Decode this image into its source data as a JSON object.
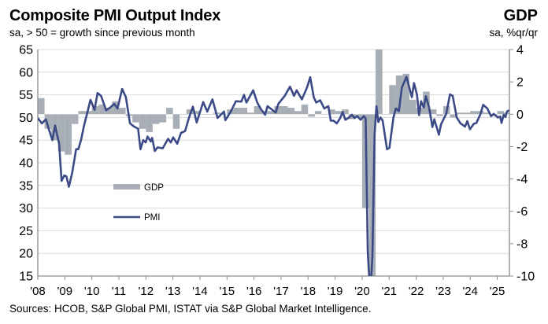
{
  "header": {
    "title": "Composite PMI Output Index",
    "subtitle": "sa, > 50 = growth since previous month",
    "right_title": "GDP",
    "right_subtitle": "sa, %qr/qr"
  },
  "footer": {
    "source": "Sources: HCOB, S&P Global PMI, ISTAT via S&P Global Market Intelligence."
  },
  "chart_data": {
    "type": "bar+line",
    "title": "Composite PMI Output Index",
    "xlim": [
      2008.0,
      2025.45
    ],
    "x_ticks": [
      "'08",
      "'09",
      "'10",
      "'11",
      "'12",
      "'13",
      "'14",
      "'15",
      "'16",
      "'17",
      "'18",
      "'19",
      "'20",
      "'21",
      "'22",
      "'23",
      "'24",
      "'25"
    ],
    "left_axis": {
      "label": "sa, > 50 = growth since previous month",
      "ylim": [
        15,
        65
      ],
      "ticks": [
        "65",
        "60",
        "55",
        "50",
        "45",
        "40",
        "35",
        "30",
        "25",
        "20",
        "15"
      ]
    },
    "right_axis": {
      "label": "sa, %qr/qr",
      "ylim": [
        -10,
        4
      ],
      "ticks": [
        "4",
        "2",
        "0",
        "-2",
        "-4",
        "-6",
        "-8",
        "-10"
      ]
    },
    "grid": true,
    "legend": {
      "placement": "center-left",
      "entries": [
        "GDP",
        "PMI"
      ]
    },
    "colors": {
      "gdp": "#a7aeb5",
      "pmi": "#3b4a86",
      "grid": "#d9d9d9",
      "axis": "#8c8c8c"
    },
    "gdp": {
      "name": "GDP",
      "axis": "right",
      "start_quarter": "2008 Q1",
      "values": [
        1.0,
        -0.9,
        -1.6,
        -2.3,
        -2.5,
        -0.6,
        0.2,
        0.2,
        0.5,
        0.6,
        0.4,
        0.8,
        0.4,
        -0.1,
        -0.5,
        -0.9,
        -1.1,
        -0.6,
        -0.5,
        0.4,
        -0.9,
        0.0,
        0.3,
        0.2,
        0.0,
        0.0,
        0.1,
        0.0,
        0.3,
        0.4,
        0.4,
        0.1,
        0.5,
        0.2,
        0.2,
        0.5,
        0.5,
        0.4,
        0.2,
        0.6,
        -0.15,
        0.2,
        0.0,
        0.3,
        0.2,
        0.3,
        -0.3,
        -0.2,
        -5.8,
        -13.0,
        16.0,
        0.0,
        1.8,
        2.4,
        2.5,
        0.9,
        0.4,
        1.4,
        0.3,
        -0.1,
        0.5,
        -0.2,
        0.1,
        0.1,
        0.2,
        0.2,
        0.1,
        -0.1,
        0.2,
        0.1
      ]
    },
    "pmi": {
      "name": "PMI",
      "axis": "left",
      "points": [
        [
          2008.0,
          49.9
        ],
        [
          2008.15,
          48.7
        ],
        [
          2008.3,
          49.6
        ],
        [
          2008.4,
          47.6
        ],
        [
          2008.54,
          45
        ],
        [
          2008.64,
          48.2
        ],
        [
          2008.79,
          44.2
        ],
        [
          2008.88,
          36
        ],
        [
          2008.98,
          37.2
        ],
        [
          2009.06,
          37
        ],
        [
          2009.15,
          34.7
        ],
        [
          2009.27,
          37.7
        ],
        [
          2009.42,
          43
        ],
        [
          2009.5,
          43
        ],
        [
          2009.61,
          45.3
        ],
        [
          2009.71,
          48.2
        ],
        [
          2009.81,
          50.5
        ],
        [
          2009.95,
          53.9
        ],
        [
          2010.1,
          51.7
        ],
        [
          2010.21,
          55.4
        ],
        [
          2010.34,
          54.8
        ],
        [
          2010.53,
          51.6
        ],
        [
          2010.68,
          52.2
        ],
        [
          2010.83,
          53
        ],
        [
          2010.95,
          52
        ],
        [
          2011.12,
          56.3
        ],
        [
          2011.26,
          54.5
        ],
        [
          2011.41,
          48.7
        ],
        [
          2011.56,
          48
        ],
        [
          2011.71,
          47.5
        ],
        [
          2011.8,
          43
        ],
        [
          2011.9,
          45
        ],
        [
          2011.99,
          44.5
        ],
        [
          2012.06,
          45.8
        ],
        [
          2012.18,
          44.7
        ],
        [
          2012.23,
          45.5
        ],
        [
          2012.33,
          42.6
        ],
        [
          2012.43,
          43.4
        ],
        [
          2012.62,
          43.2
        ],
        [
          2012.82,
          45.3
        ],
        [
          2012.92,
          44.5
        ],
        [
          2013.01,
          45.6
        ],
        [
          2013.16,
          44.2
        ],
        [
          2013.3,
          46.6
        ],
        [
          2013.45,
          47
        ],
        [
          2013.59,
          49.9
        ],
        [
          2013.74,
          52.4
        ],
        [
          2013.88,
          48.9
        ],
        [
          2014.12,
          53.4
        ],
        [
          2014.27,
          51.3
        ],
        [
          2014.46,
          54
        ],
        [
          2014.65,
          49.9
        ],
        [
          2014.89,
          51.3
        ],
        [
          2014.94,
          49.4
        ],
        [
          2015.14,
          51.3
        ],
        [
          2015.33,
          53.6
        ],
        [
          2015.53,
          53.5
        ],
        [
          2015.63,
          55
        ],
        [
          2015.72,
          53.3
        ],
        [
          2015.97,
          56
        ],
        [
          2016.12,
          53.3
        ],
        [
          2016.26,
          51.8
        ],
        [
          2016.41,
          50.6
        ],
        [
          2016.5,
          52.5
        ],
        [
          2016.8,
          51.1
        ],
        [
          2016.9,
          53
        ],
        [
          2017.14,
          54.8
        ],
        [
          2017.33,
          56.8
        ],
        [
          2017.48,
          54.8
        ],
        [
          2017.58,
          56
        ],
        [
          2017.77,
          54
        ],
        [
          2017.96,
          56.6
        ],
        [
          2018.08,
          58.9
        ],
        [
          2018.21,
          54.5
        ],
        [
          2018.3,
          53.3
        ],
        [
          2018.45,
          53.8
        ],
        [
          2018.6,
          52
        ],
        [
          2018.75,
          52.5
        ],
        [
          2018.84,
          49.3
        ],
        [
          2018.94,
          49.3
        ],
        [
          2019.06,
          48.7
        ],
        [
          2019.18,
          49.8
        ],
        [
          2019.28,
          51.2
        ],
        [
          2019.38,
          49.5
        ],
        [
          2019.52,
          50
        ],
        [
          2019.62,
          50.6
        ],
        [
          2019.72,
          49.9
        ],
        [
          2019.82,
          50.3
        ],
        [
          2019.94,
          49.5
        ],
        [
          2020.06,
          50.3
        ],
        [
          2020.13,
          49.8
        ],
        [
          2020.21,
          20.2
        ],
        [
          2020.3,
          10.9
        ],
        [
          2020.38,
          19.3
        ],
        [
          2020.46,
          46
        ],
        [
          2020.53,
          52.5
        ],
        [
          2020.6,
          49
        ],
        [
          2020.68,
          50
        ],
        [
          2020.76,
          49.3
        ],
        [
          2020.92,
          43
        ],
        [
          2021.01,
          43.3
        ],
        [
          2021.16,
          50
        ],
        [
          2021.25,
          52
        ],
        [
          2021.36,
          51.4
        ],
        [
          2021.47,
          56.6
        ],
        [
          2021.64,
          59
        ],
        [
          2021.84,
          54.5
        ],
        [
          2021.92,
          57.6
        ],
        [
          2022.03,
          55
        ],
        [
          2022.11,
          50.5
        ],
        [
          2022.18,
          53.6
        ],
        [
          2022.28,
          52.2
        ],
        [
          2022.36,
          54.7
        ],
        [
          2022.48,
          52.2
        ],
        [
          2022.6,
          47.9
        ],
        [
          2022.67,
          49.6
        ],
        [
          2022.84,
          46.2
        ],
        [
          2022.92,
          48.5
        ],
        [
          2023.11,
          50.8
        ],
        [
          2023.25,
          55.1
        ],
        [
          2023.35,
          54.8
        ],
        [
          2023.5,
          50
        ],
        [
          2023.64,
          48.7
        ],
        [
          2023.81,
          48
        ],
        [
          2023.89,
          49.2
        ],
        [
          2023.99,
          47.4
        ],
        [
          2024.13,
          48.6
        ],
        [
          2024.23,
          48.8
        ],
        [
          2024.38,
          50.8
        ],
        [
          2024.48,
          52.8
        ],
        [
          2024.63,
          52
        ],
        [
          2024.77,
          50.3
        ],
        [
          2024.87,
          50.8
        ],
        [
          2025.02,
          50
        ],
        [
          2025.11,
          50.2
        ],
        [
          2025.16,
          48.8
        ],
        [
          2025.24,
          50.6
        ],
        [
          2025.3,
          50.1
        ],
        [
          2025.36,
          51.3
        ],
        [
          2025.44,
          51.6
        ]
      ]
    }
  }
}
